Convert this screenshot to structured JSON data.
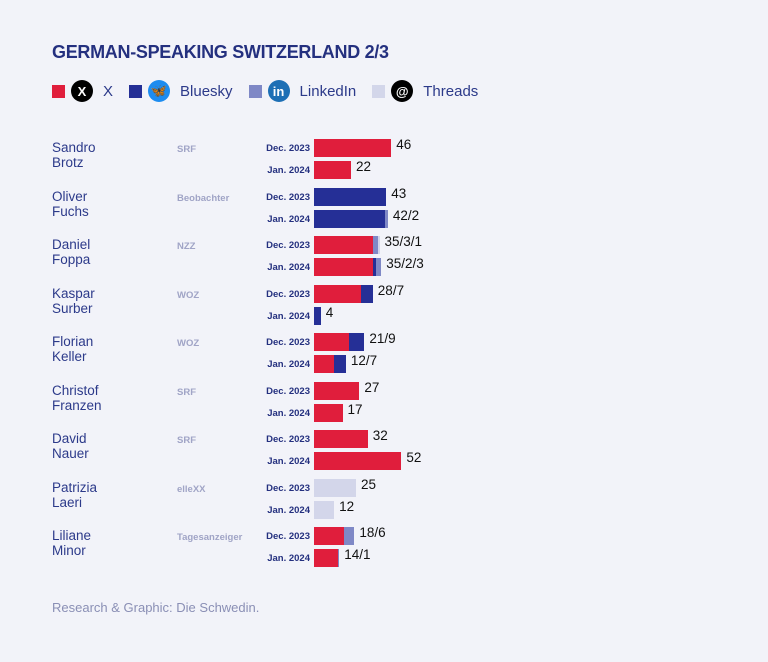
{
  "title": "GERMAN-SPEAKING SWITZERLAND  2/3",
  "legend": [
    {
      "key": "x",
      "label": "X",
      "color": "#e01e3c",
      "icon": "x-logo-icon",
      "logo_bg": "#000000",
      "glyph": "X"
    },
    {
      "key": "bluesky",
      "label": "Bluesky",
      "color": "#252f96",
      "icon": "bluesky-logo-icon",
      "logo_bg": "#1d8cf0",
      "glyph": "🦋"
    },
    {
      "key": "linkedin",
      "label": "LinkedIn",
      "color": "#7f88c6",
      "icon": "linkedin-logo-icon",
      "logo_bg": "#1d6fb5",
      "glyph": "in"
    },
    {
      "key": "threads",
      "label": "Threads",
      "color": "#d3d6ea",
      "icon": "threads-logo-icon",
      "logo_bg": "#000000",
      "glyph": "@"
    }
  ],
  "footer": "Research & Graphic: Die Schwedin.",
  "chart_data": {
    "type": "bar",
    "orientation": "horizontal",
    "stacked": true,
    "title": "GERMAN-SPEAKING SWITZERLAND  2/3",
    "series_keys": [
      "x",
      "bluesky",
      "linkedin",
      "threads"
    ],
    "series_names": [
      "X",
      "Bluesky",
      "LinkedIn",
      "Threads"
    ],
    "periods": [
      "Dec. 2023",
      "Jan. 2024"
    ],
    "people": [
      {
        "name": "Sandro Brotz",
        "outlet": "SRF",
        "rows": [
          {
            "period": "Dec. 2023",
            "label": "46",
            "values": {
              "x": 46,
              "bluesky": 0,
              "linkedin": 0,
              "threads": 0
            }
          },
          {
            "period": "Jan. 2024",
            "label": "22",
            "values": {
              "x": 22,
              "bluesky": 0,
              "linkedin": 0,
              "threads": 0
            }
          }
        ]
      },
      {
        "name": "Oliver Fuchs",
        "outlet": "Beobachter",
        "rows": [
          {
            "period": "Dec. 2023",
            "label": "43",
            "values": {
              "x": 0,
              "bluesky": 43,
              "linkedin": 0,
              "threads": 0
            }
          },
          {
            "period": "Jan. 2024",
            "label": "42/2",
            "values": {
              "x": 0,
              "bluesky": 42,
              "linkedin": 2,
              "threads": 0
            }
          }
        ]
      },
      {
        "name": "Daniel Foppa",
        "outlet": "NZZ",
        "rows": [
          {
            "period": "Dec. 2023",
            "label": "35/3/1",
            "values": {
              "x": 35,
              "bluesky": 0,
              "linkedin": 3,
              "threads": 1
            }
          },
          {
            "period": "Jan. 2024",
            "label": "35/2/3",
            "values": {
              "x": 35,
              "bluesky": 2,
              "linkedin": 3,
              "threads": 0
            }
          }
        ]
      },
      {
        "name": "Kaspar Surber",
        "outlet": "WOZ",
        "rows": [
          {
            "period": "Dec. 2023",
            "label": "28/7",
            "values": {
              "x": 28,
              "bluesky": 7,
              "linkedin": 0,
              "threads": 0
            }
          },
          {
            "period": "Jan. 2024",
            "label": "4",
            "values": {
              "x": 0,
              "bluesky": 4,
              "linkedin": 0,
              "threads": 0
            }
          }
        ]
      },
      {
        "name": "Florian Keller",
        "outlet": "WOZ",
        "rows": [
          {
            "period": "Dec. 2023",
            "label": "21/9",
            "values": {
              "x": 21,
              "bluesky": 9,
              "linkedin": 0,
              "threads": 0
            }
          },
          {
            "period": "Jan. 2024",
            "label": "12/7",
            "values": {
              "x": 12,
              "bluesky": 7,
              "linkedin": 0,
              "threads": 0
            }
          }
        ]
      },
      {
        "name": "Christof Franzen",
        "outlet": "SRF",
        "rows": [
          {
            "period": "Dec. 2023",
            "label": "27",
            "values": {
              "x": 27,
              "bluesky": 0,
              "linkedin": 0,
              "threads": 0
            }
          },
          {
            "period": "Jan. 2024",
            "label": "17",
            "values": {
              "x": 17,
              "bluesky": 0,
              "linkedin": 0,
              "threads": 0
            }
          }
        ]
      },
      {
        "name": "David Nauer",
        "outlet": "SRF",
        "rows": [
          {
            "period": "Dec. 2023",
            "label": "32",
            "values": {
              "x": 32,
              "bluesky": 0,
              "linkedin": 0,
              "threads": 0
            }
          },
          {
            "period": "Jan. 2024",
            "label": "52",
            "values": {
              "x": 52,
              "bluesky": 0,
              "linkedin": 0,
              "threads": 0
            }
          }
        ]
      },
      {
        "name": "Patrizia Laeri",
        "outlet": "elleXX",
        "rows": [
          {
            "period": "Dec. 2023",
            "label": "25",
            "values": {
              "x": 0,
              "bluesky": 0,
              "linkedin": 0,
              "threads": 25
            }
          },
          {
            "period": "Jan. 2024",
            "label": "12",
            "values": {
              "x": 0,
              "bluesky": 0,
              "linkedin": 0,
              "threads": 12
            }
          }
        ]
      },
      {
        "name": "Liliane Minor",
        "outlet": "Tagesanzeiger",
        "rows": [
          {
            "period": "Dec. 2023",
            "label": "18/6",
            "values": {
              "x": 18,
              "bluesky": 0,
              "linkedin": 6,
              "threads": 0
            }
          },
          {
            "period": "Jan. 2024",
            "label": "14/1",
            "values": {
              "x": 14,
              "bluesky": 0,
              "linkedin": 1,
              "threads": 0
            }
          }
        ]
      }
    ]
  }
}
